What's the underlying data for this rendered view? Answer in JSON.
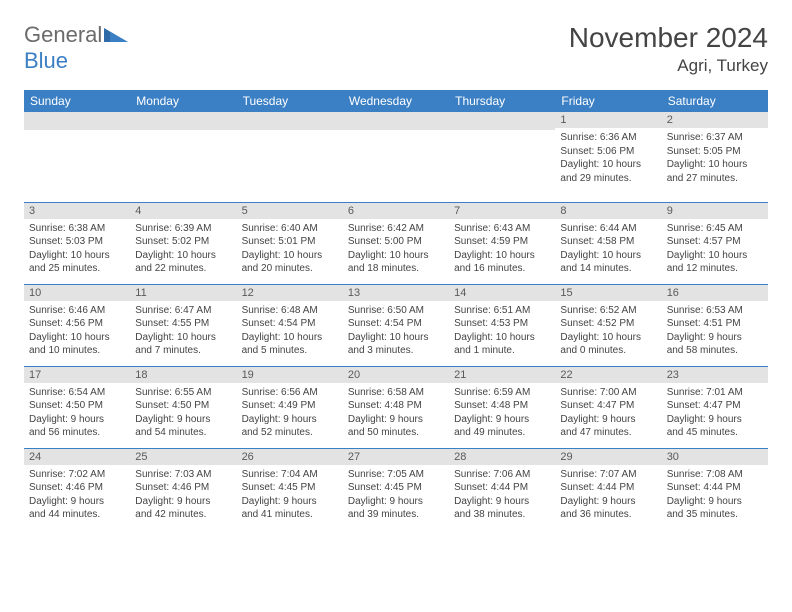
{
  "brand": {
    "word1": "General",
    "word2": "Blue"
  },
  "title": "November 2024",
  "location": "Agri, Turkey",
  "weekdays": [
    "Sunday",
    "Monday",
    "Tuesday",
    "Wednesday",
    "Thursday",
    "Friday",
    "Saturday"
  ],
  "colors": {
    "accent": "#3b7fc4",
    "dayBar": "#e3e3e3",
    "text": "#444444",
    "logoGray": "#6b6b6b"
  },
  "weeks": [
    [
      null,
      null,
      null,
      null,
      null,
      {
        "n": "1",
        "sr": "Sunrise: 6:36 AM",
        "ss": "Sunset: 5:06 PM",
        "d1": "Daylight: 10 hours",
        "d2": "and 29 minutes."
      },
      {
        "n": "2",
        "sr": "Sunrise: 6:37 AM",
        "ss": "Sunset: 5:05 PM",
        "d1": "Daylight: 10 hours",
        "d2": "and 27 minutes."
      }
    ],
    [
      {
        "n": "3",
        "sr": "Sunrise: 6:38 AM",
        "ss": "Sunset: 5:03 PM",
        "d1": "Daylight: 10 hours",
        "d2": "and 25 minutes."
      },
      {
        "n": "4",
        "sr": "Sunrise: 6:39 AM",
        "ss": "Sunset: 5:02 PM",
        "d1": "Daylight: 10 hours",
        "d2": "and 22 minutes."
      },
      {
        "n": "5",
        "sr": "Sunrise: 6:40 AM",
        "ss": "Sunset: 5:01 PM",
        "d1": "Daylight: 10 hours",
        "d2": "and 20 minutes."
      },
      {
        "n": "6",
        "sr": "Sunrise: 6:42 AM",
        "ss": "Sunset: 5:00 PM",
        "d1": "Daylight: 10 hours",
        "d2": "and 18 minutes."
      },
      {
        "n": "7",
        "sr": "Sunrise: 6:43 AM",
        "ss": "Sunset: 4:59 PM",
        "d1": "Daylight: 10 hours",
        "d2": "and 16 minutes."
      },
      {
        "n": "8",
        "sr": "Sunrise: 6:44 AM",
        "ss": "Sunset: 4:58 PM",
        "d1": "Daylight: 10 hours",
        "d2": "and 14 minutes."
      },
      {
        "n": "9",
        "sr": "Sunrise: 6:45 AM",
        "ss": "Sunset: 4:57 PM",
        "d1": "Daylight: 10 hours",
        "d2": "and 12 minutes."
      }
    ],
    [
      {
        "n": "10",
        "sr": "Sunrise: 6:46 AM",
        "ss": "Sunset: 4:56 PM",
        "d1": "Daylight: 10 hours",
        "d2": "and 10 minutes."
      },
      {
        "n": "11",
        "sr": "Sunrise: 6:47 AM",
        "ss": "Sunset: 4:55 PM",
        "d1": "Daylight: 10 hours",
        "d2": "and 7 minutes."
      },
      {
        "n": "12",
        "sr": "Sunrise: 6:48 AM",
        "ss": "Sunset: 4:54 PM",
        "d1": "Daylight: 10 hours",
        "d2": "and 5 minutes."
      },
      {
        "n": "13",
        "sr": "Sunrise: 6:50 AM",
        "ss": "Sunset: 4:54 PM",
        "d1": "Daylight: 10 hours",
        "d2": "and 3 minutes."
      },
      {
        "n": "14",
        "sr": "Sunrise: 6:51 AM",
        "ss": "Sunset: 4:53 PM",
        "d1": "Daylight: 10 hours",
        "d2": "and 1 minute."
      },
      {
        "n": "15",
        "sr": "Sunrise: 6:52 AM",
        "ss": "Sunset: 4:52 PM",
        "d1": "Daylight: 10 hours",
        "d2": "and 0 minutes."
      },
      {
        "n": "16",
        "sr": "Sunrise: 6:53 AM",
        "ss": "Sunset: 4:51 PM",
        "d1": "Daylight: 9 hours",
        "d2": "and 58 minutes."
      }
    ],
    [
      {
        "n": "17",
        "sr": "Sunrise: 6:54 AM",
        "ss": "Sunset: 4:50 PM",
        "d1": "Daylight: 9 hours",
        "d2": "and 56 minutes."
      },
      {
        "n": "18",
        "sr": "Sunrise: 6:55 AM",
        "ss": "Sunset: 4:50 PM",
        "d1": "Daylight: 9 hours",
        "d2": "and 54 minutes."
      },
      {
        "n": "19",
        "sr": "Sunrise: 6:56 AM",
        "ss": "Sunset: 4:49 PM",
        "d1": "Daylight: 9 hours",
        "d2": "and 52 minutes."
      },
      {
        "n": "20",
        "sr": "Sunrise: 6:58 AM",
        "ss": "Sunset: 4:48 PM",
        "d1": "Daylight: 9 hours",
        "d2": "and 50 minutes."
      },
      {
        "n": "21",
        "sr": "Sunrise: 6:59 AM",
        "ss": "Sunset: 4:48 PM",
        "d1": "Daylight: 9 hours",
        "d2": "and 49 minutes."
      },
      {
        "n": "22",
        "sr": "Sunrise: 7:00 AM",
        "ss": "Sunset: 4:47 PM",
        "d1": "Daylight: 9 hours",
        "d2": "and 47 minutes."
      },
      {
        "n": "23",
        "sr": "Sunrise: 7:01 AM",
        "ss": "Sunset: 4:47 PM",
        "d1": "Daylight: 9 hours",
        "d2": "and 45 minutes."
      }
    ],
    [
      {
        "n": "24",
        "sr": "Sunrise: 7:02 AM",
        "ss": "Sunset: 4:46 PM",
        "d1": "Daylight: 9 hours",
        "d2": "and 44 minutes."
      },
      {
        "n": "25",
        "sr": "Sunrise: 7:03 AM",
        "ss": "Sunset: 4:46 PM",
        "d1": "Daylight: 9 hours",
        "d2": "and 42 minutes."
      },
      {
        "n": "26",
        "sr": "Sunrise: 7:04 AM",
        "ss": "Sunset: 4:45 PM",
        "d1": "Daylight: 9 hours",
        "d2": "and 41 minutes."
      },
      {
        "n": "27",
        "sr": "Sunrise: 7:05 AM",
        "ss": "Sunset: 4:45 PM",
        "d1": "Daylight: 9 hours",
        "d2": "and 39 minutes."
      },
      {
        "n": "28",
        "sr": "Sunrise: 7:06 AM",
        "ss": "Sunset: 4:44 PM",
        "d1": "Daylight: 9 hours",
        "d2": "and 38 minutes."
      },
      {
        "n": "29",
        "sr": "Sunrise: 7:07 AM",
        "ss": "Sunset: 4:44 PM",
        "d1": "Daylight: 9 hours",
        "d2": "and 36 minutes."
      },
      {
        "n": "30",
        "sr": "Sunrise: 7:08 AM",
        "ss": "Sunset: 4:44 PM",
        "d1": "Daylight: 9 hours",
        "d2": "and 35 minutes."
      }
    ]
  ]
}
